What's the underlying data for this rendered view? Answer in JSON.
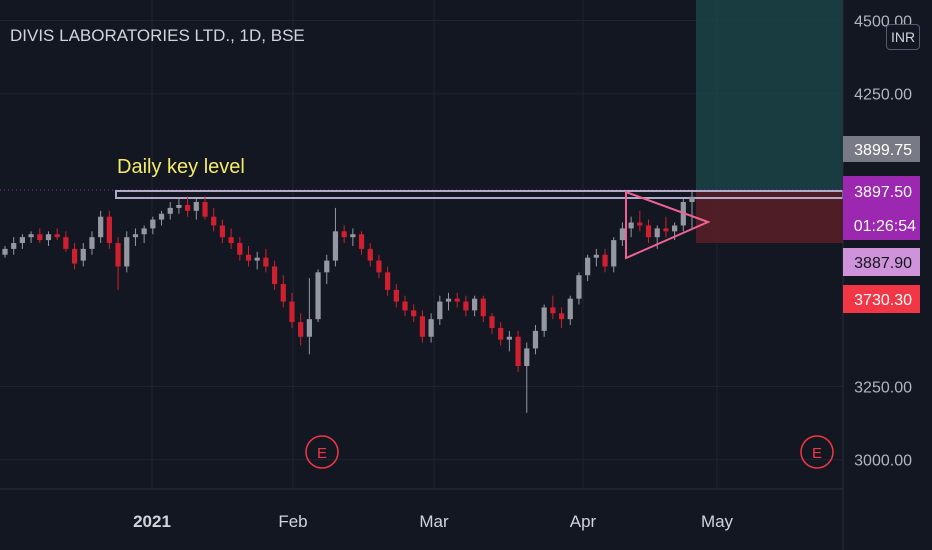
{
  "header": {
    "title": "DIVIS LABORATORIES LTD., 1D, BSE",
    "currency": "INR"
  },
  "annotation": {
    "key_level_label": "Daily key level",
    "earnings_marker": "E"
  },
  "price_labels": {
    "high_level": "3899.75",
    "last_price": "3897.50",
    "countdown": "01:26:54",
    "open_level": "3887.90",
    "stop_level": "3730.30"
  },
  "colors": {
    "background": "#131722",
    "up": "#9598a1",
    "down": "#d0202f",
    "key_level": "#b2a9c9",
    "accent_purple": "#9c27b0",
    "accent_lilac": "#ce93d8",
    "stop_red": "#f23645",
    "target_green": "#1b4a4a",
    "earnings": "#f23645",
    "label_yellow": "#f5ea6a"
  },
  "chart_data": {
    "type": "candlestick",
    "title": "DIVIS LABORATORIES LTD., 1D, BSE",
    "xlabel": "",
    "ylabel": "",
    "ylim": [
      2900,
      4570
    ],
    "y_ticks": [
      "3000.00",
      "3250.00",
      "4250.00",
      "4500.00"
    ],
    "x_ticks": [
      "2021",
      "Feb",
      "Mar",
      "Apr",
      "May"
    ],
    "grid": true,
    "key_level": 3880,
    "series": [
      {
        "values": [
          [
            3700,
            3730,
            3690,
            3720
          ],
          [
            3720,
            3760,
            3700,
            3740
          ],
          [
            3740,
            3770,
            3720,
            3760
          ],
          [
            3760,
            3780,
            3740,
            3770
          ],
          [
            3770,
            3790,
            3740,
            3750
          ],
          [
            3750,
            3780,
            3730,
            3770
          ],
          [
            3770,
            3790,
            3750,
            3760
          ],
          [
            3760,
            3780,
            3710,
            3720
          ],
          [
            3720,
            3740,
            3650,
            3670
          ],
          [
            3680,
            3740,
            3660,
            3720
          ],
          [
            3720,
            3780,
            3700,
            3760
          ],
          [
            3760,
            3850,
            3740,
            3830
          ],
          [
            3830,
            3850,
            3720,
            3740
          ],
          [
            3740,
            3760,
            3580,
            3660
          ],
          [
            3660,
            3780,
            3640,
            3760
          ],
          [
            3760,
            3790,
            3730,
            3770
          ],
          [
            3770,
            3800,
            3740,
            3790
          ],
          [
            3790,
            3830,
            3770,
            3820
          ],
          [
            3820,
            3850,
            3800,
            3840
          ],
          [
            3840,
            3880,
            3820,
            3860
          ],
          [
            3860,
            3890,
            3840,
            3870
          ],
          [
            3870,
            3900,
            3830,
            3850
          ],
          [
            3850,
            3890,
            3820,
            3880
          ],
          [
            3880,
            3900,
            3820,
            3830
          ],
          [
            3830,
            3860,
            3780,
            3800
          ],
          [
            3800,
            3820,
            3740,
            3760
          ],
          [
            3760,
            3790,
            3720,
            3740
          ],
          [
            3740,
            3760,
            3680,
            3700
          ],
          [
            3700,
            3730,
            3660,
            3680
          ],
          [
            3680,
            3710,
            3650,
            3690
          ],
          [
            3690,
            3720,
            3640,
            3660
          ],
          [
            3660,
            3680,
            3580,
            3600
          ],
          [
            3600,
            3630,
            3520,
            3540
          ],
          [
            3540,
            3570,
            3450,
            3470
          ],
          [
            3470,
            3500,
            3390,
            3420
          ],
          [
            3420,
            3620,
            3360,
            3480
          ],
          [
            3480,
            3650,
            3470,
            3640
          ],
          [
            3640,
            3700,
            3600,
            3680
          ],
          [
            3680,
            3860,
            3660,
            3780
          ],
          [
            3780,
            3800,
            3740,
            3760
          ],
          [
            3760,
            3790,
            3730,
            3770
          ],
          [
            3770,
            3780,
            3700,
            3720
          ],
          [
            3720,
            3740,
            3660,
            3680
          ],
          [
            3680,
            3700,
            3620,
            3640
          ],
          [
            3640,
            3660,
            3560,
            3580
          ],
          [
            3580,
            3600,
            3520,
            3540
          ],
          [
            3540,
            3560,
            3490,
            3510
          ],
          [
            3510,
            3530,
            3470,
            3490
          ],
          [
            3490,
            3510,
            3400,
            3420
          ],
          [
            3420,
            3500,
            3400,
            3480
          ],
          [
            3480,
            3560,
            3460,
            3540
          ],
          [
            3540,
            3570,
            3510,
            3550
          ],
          [
            3550,
            3570,
            3520,
            3540
          ],
          [
            3540,
            3560,
            3490,
            3510
          ],
          [
            3510,
            3560,
            3490,
            3550
          ],
          [
            3550,
            3560,
            3470,
            3490
          ],
          [
            3490,
            3500,
            3430,
            3450
          ],
          [
            3450,
            3470,
            3390,
            3410
          ],
          [
            3410,
            3440,
            3370,
            3420
          ],
          [
            3420,
            3440,
            3300,
            3320
          ],
          [
            3320,
            3400,
            3160,
            3380
          ],
          [
            3380,
            3460,
            3360,
            3440
          ],
          [
            3440,
            3530,
            3420,
            3520
          ],
          [
            3520,
            3560,
            3480,
            3500
          ],
          [
            3500,
            3520,
            3450,
            3480
          ],
          [
            3480,
            3560,
            3460,
            3550
          ],
          [
            3550,
            3640,
            3530,
            3630
          ],
          [
            3630,
            3700,
            3610,
            3690
          ],
          [
            3690,
            3720,
            3660,
            3700
          ],
          [
            3700,
            3720,
            3640,
            3660
          ],
          [
            3660,
            3760,
            3640,
            3750
          ],
          [
            3750,
            3810,
            3730,
            3790
          ],
          [
            3790,
            3830,
            3760,
            3810
          ],
          [
            3810,
            3850,
            3780,
            3800
          ],
          [
            3800,
            3820,
            3740,
            3760
          ],
          [
            3760,
            3800,
            3720,
            3790
          ],
          [
            3790,
            3830,
            3760,
            3780
          ],
          [
            3780,
            3810,
            3750,
            3800
          ],
          [
            3800,
            3890,
            3780,
            3880
          ],
          [
            3880,
            3915,
            3790,
            3898
          ]
        ]
      }
    ]
  }
}
